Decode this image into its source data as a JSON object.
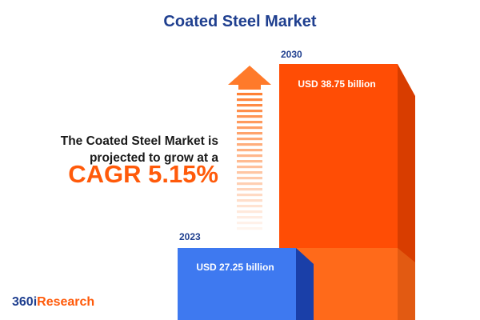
{
  "title": "Coated Steel Market",
  "projection_text_line1": "The Coated Steel Market is",
  "projection_text_line2": "projected to grow at a",
  "cagr_text": "CAGR 5.15%",
  "logo": {
    "prefix": "360i",
    "suffix": "Research"
  },
  "colors": {
    "title": "#1f3f8f",
    "bar_2023_front": "#3e79f0",
    "bar_2023_side": "#1a3fa8",
    "bar_2030_front": "#ff4d05",
    "bar_2030_side": "#d83d00",
    "bar_2030_lower": "#ff6a1a",
    "arrow": "#ff7a2a"
  },
  "chart_data": {
    "type": "bar",
    "categories": [
      "2023",
      "2030"
    ],
    "values": [
      27.25,
      38.75
    ],
    "value_labels": [
      "USD 27.25 billion",
      "USD 38.75 billion"
    ],
    "units": "USD billion",
    "cagr_percent": 5.15
  }
}
